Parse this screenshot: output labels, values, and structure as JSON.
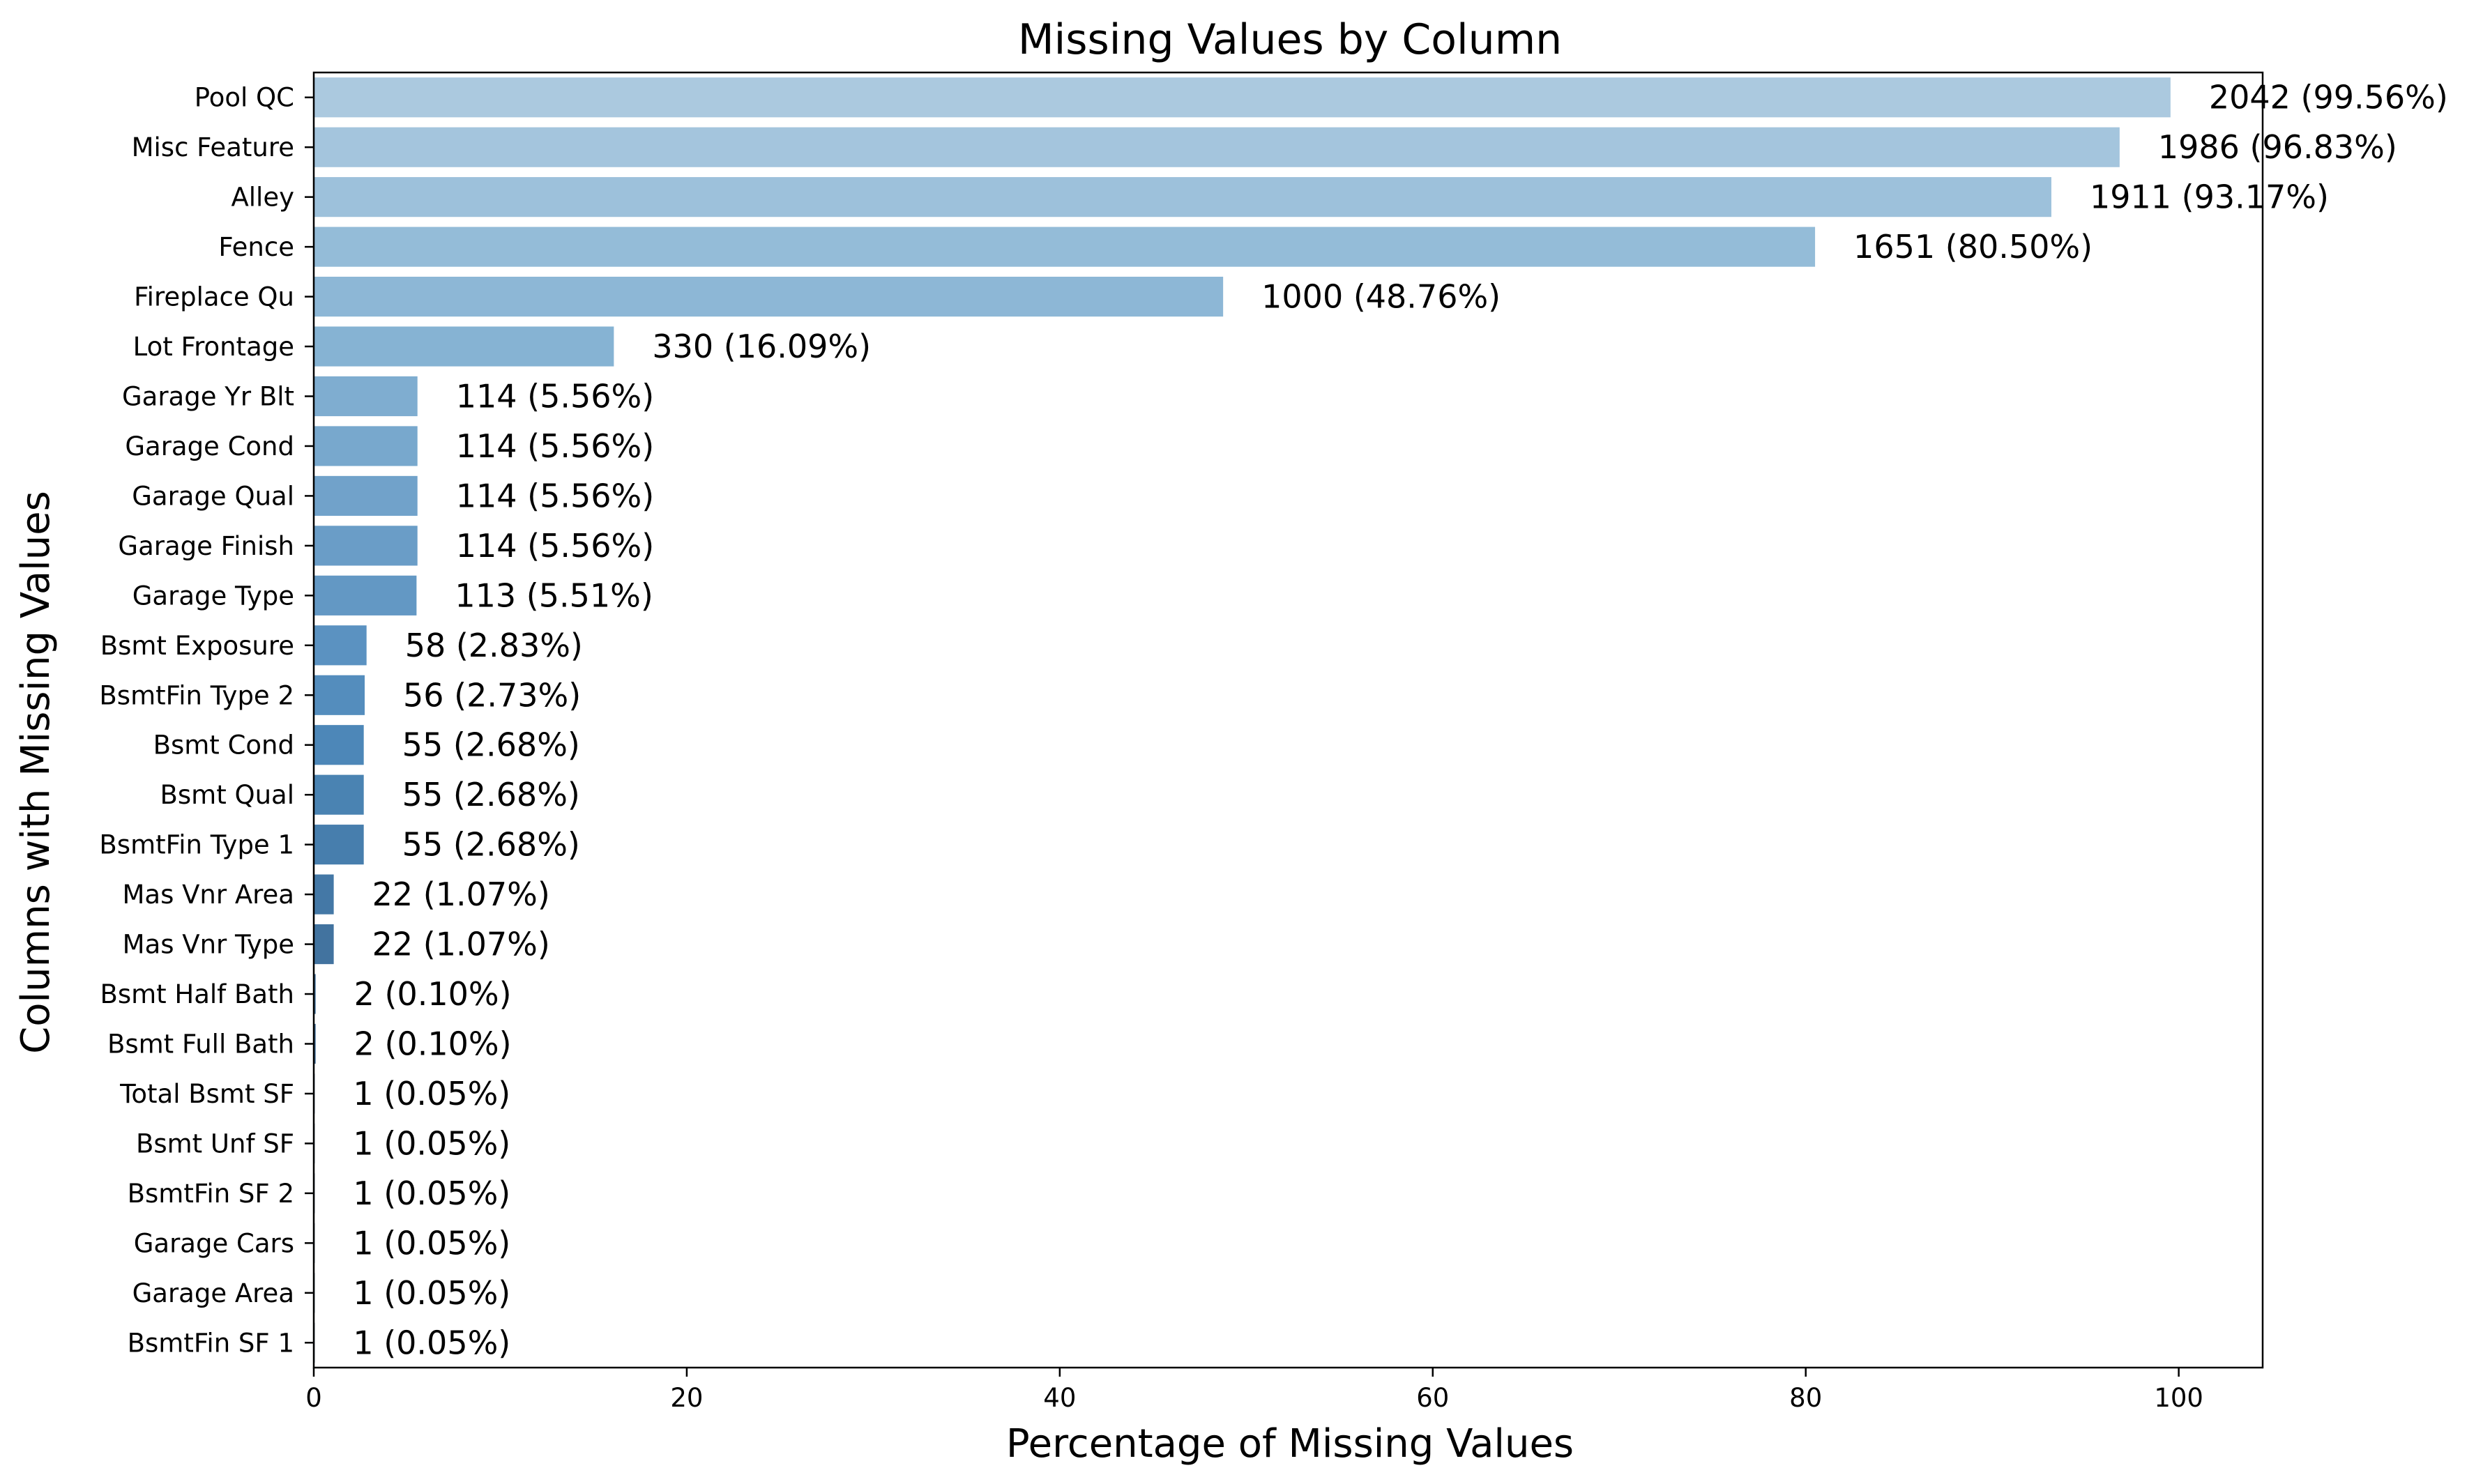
{
  "chart_data": {
    "type": "bar",
    "orientation": "horizontal",
    "title": "Missing Values by Column",
    "xlabel": "Percentage of Missing Values",
    "ylabel": "Columns with Missing Values",
    "xlim": [
      0,
      104.5
    ],
    "xticks": [
      0,
      20,
      40,
      60,
      80,
      100
    ],
    "grid": false,
    "legend": "none",
    "categories": [
      "Pool QC",
      "Misc Feature",
      "Alley",
      "Fence",
      "Fireplace Qu",
      "Lot Frontage",
      "Garage Yr Blt",
      "Garage Cond",
      "Garage Qual",
      "Garage Finish",
      "Garage Type",
      "Bsmt Exposure",
      "BsmtFin Type 2",
      "Bsmt Cond",
      "Bsmt Qual",
      "BsmtFin Type 1",
      "Mas Vnr Area",
      "Mas Vnr Type",
      "Bsmt Half Bath",
      "Bsmt Full Bath",
      "Total Bsmt SF",
      "Bsmt Unf SF",
      "BsmtFin SF 2",
      "Garage Cars",
      "Garage Area",
      "BsmtFin SF 1"
    ],
    "values": [
      99.56,
      96.83,
      93.17,
      80.5,
      48.76,
      16.09,
      5.56,
      5.56,
      5.56,
      5.56,
      5.51,
      2.83,
      2.73,
      2.68,
      2.68,
      2.68,
      1.07,
      1.07,
      0.1,
      0.1,
      0.05,
      0.05,
      0.05,
      0.05,
      0.05,
      0.05
    ],
    "data_labels": [
      "2042 (99.56%)",
      "1986 (96.83%)",
      "1911 (93.17%)",
      "1651 (80.50%)",
      "1000 (48.76%)",
      "330 (16.09%)",
      "114 (5.56%)",
      "114 (5.56%)",
      "114 (5.56%)",
      "114 (5.56%)",
      "113 (5.51%)",
      "58 (2.83%)",
      "56 (2.73%)",
      "55 (2.68%)",
      "55 (2.68%)",
      "55 (2.68%)",
      "22 (1.07%)",
      "22 (1.07%)",
      "2 (0.10%)",
      "2 (0.10%)",
      "1 (0.05%)",
      "1 (0.05%)",
      "1 (0.05%)",
      "1 (0.05%)",
      "1 (0.05%)",
      "1 (0.05%)"
    ],
    "colors": [
      "#abc9df",
      "#a4c5dd",
      "#9dc1db",
      "#94bcd8",
      "#8db7d6",
      "#86b3d3",
      "#7fadd0",
      "#78a8cd",
      "#71a2ca",
      "#6a9dc7",
      "#6398c4",
      "#5b92c1",
      "#548dbd",
      "#4d87b8",
      "#4a83b2",
      "#477ead",
      "#4478a6",
      "#42739f",
      "#406e98",
      "#3e6992",
      "#3c658c",
      "#3a6086",
      "#385b80",
      "#36577a",
      "#345274",
      "#324e6e"
    ]
  }
}
